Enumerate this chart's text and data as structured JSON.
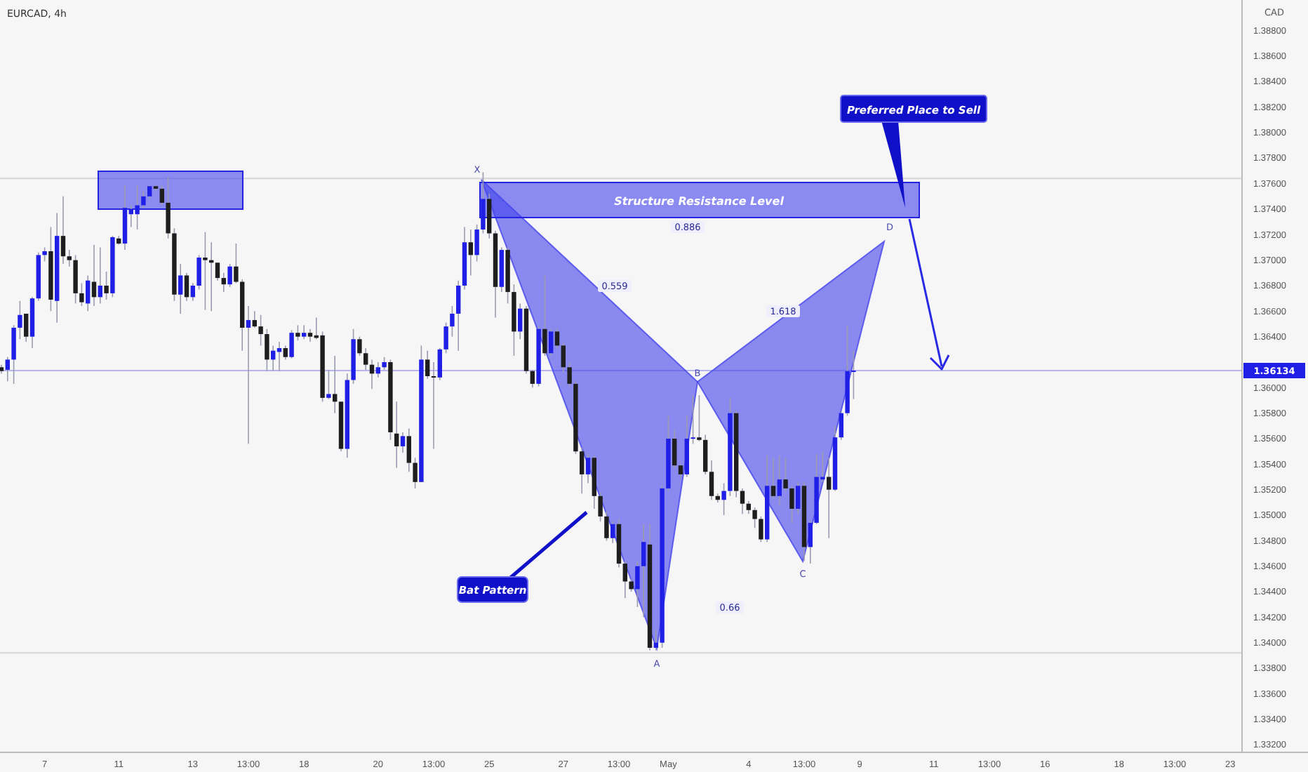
{
  "chart_data": {
    "type": "candlestick",
    "title": "EURCAD, 4h",
    "ylabel": "CAD",
    "categories": [
      null,
      null,
      null,
      null,
      null,
      null,
      null,
      "7",
      null,
      null,
      null,
      null,
      null,
      null,
      null,
      null,
      null,
      null,
      null,
      "11",
      null,
      null,
      null,
      null,
      null,
      null,
      null,
      null,
      null,
      null,
      null,
      "13",
      null,
      null,
      null,
      null,
      null,
      null,
      null,
      null,
      "13:00",
      null,
      null,
      null,
      null,
      null,
      null,
      null,
      null,
      "18",
      null,
      null,
      null,
      null,
      null,
      null,
      null,
      null,
      null,
      null,
      null,
      "20",
      null,
      null,
      null,
      null,
      null,
      null,
      null,
      null,
      "13:00",
      null,
      null,
      null,
      null,
      null,
      null,
      null,
      null,
      "25",
      null,
      null,
      null,
      null,
      null,
      null,
      null,
      null,
      null,
      null,
      null,
      "27",
      null,
      null,
      null,
      null,
      null,
      null,
      null,
      null,
      "13:00",
      null,
      null,
      null,
      null,
      null,
      null,
      null,
      "May",
      null,
      null,
      null,
      null,
      null,
      null,
      null,
      null,
      null,
      null,
      null,
      null,
      "4",
      null,
      null,
      null,
      null,
      null,
      null,
      null,
      null,
      "13:00",
      null,
      null,
      null,
      null,
      null,
      null,
      null,
      null,
      "9",
      null,
      null,
      null,
      null,
      null,
      null,
      null,
      null,
      null,
      null,
      null,
      "11",
      null,
      null,
      null,
      null,
      null,
      null,
      null,
      null,
      "13:00",
      null,
      null,
      null,
      null,
      null,
      null,
      null,
      null,
      "16",
      null,
      null,
      null,
      null,
      null,
      null,
      null,
      null,
      null,
      null,
      null,
      "18",
      null,
      null,
      null,
      null,
      null,
      null,
      null,
      null,
      "13:00",
      null,
      null,
      null,
      null,
      null,
      null,
      null,
      null,
      "23"
    ],
    "ohlc": [
      [
        1.3616,
        1.3618,
        1.3611,
        1.3613
      ],
      [
        1.3614,
        1.3624,
        1.3605,
        1.3622
      ],
      [
        1.3622,
        1.3649,
        1.3603,
        1.3647
      ],
      [
        1.3647,
        1.3668,
        1.3638,
        1.3657
      ],
      [
        1.3658,
        1.3658,
        1.3636,
        1.364
      ],
      [
        1.364,
        1.3671,
        1.3631,
        1.367
      ],
      [
        1.367,
        1.3706,
        1.3668,
        1.3704
      ],
      [
        1.3704,
        1.371,
        1.3699,
        1.3707
      ],
      [
        1.3707,
        1.3726,
        1.366,
        1.3669
      ],
      [
        1.3668,
        1.3737,
        1.3651,
        1.3719
      ],
      [
        1.3719,
        1.375,
        1.3697,
        1.3703
      ],
      [
        1.3703,
        1.3708,
        1.3695,
        1.37
      ],
      [
        1.37,
        1.3704,
        1.3666,
        1.3674
      ],
      [
        1.3674,
        1.3682,
        1.3664,
        1.3667
      ],
      [
        1.3666,
        1.3688,
        1.366,
        1.3684
      ],
      [
        1.3683,
        1.3712,
        1.3664,
        1.3671
      ],
      [
        1.3671,
        1.371,
        1.3666,
        1.368
      ],
      [
        1.368,
        1.3691,
        1.3669,
        1.3674
      ],
      [
        1.3674,
        1.3719,
        1.3671,
        1.3718
      ],
      [
        1.3717,
        1.3719,
        1.3712,
        1.3713
      ],
      [
        1.3713,
        1.3759,
        1.3708,
        1.3741
      ],
      [
        1.3736,
        1.3743,
        1.3726,
        1.374
      ],
      [
        1.3736,
        1.3759,
        1.3724,
        1.3743
      ],
      [
        1.3743,
        1.3754,
        1.3741,
        1.375
      ],
      [
        1.375,
        1.3759,
        1.3748,
        1.3758
      ],
      [
        1.3758,
        1.3759,
        1.3754,
        1.3756
      ],
      [
        1.3756,
        1.3759,
        1.3743,
        1.3745
      ],
      [
        1.3745,
        1.3765,
        1.3717,
        1.3721
      ],
      [
        1.3721,
        1.3725,
        1.3668,
        1.3673
      ],
      [
        1.3673,
        1.3697,
        1.3658,
        1.3688
      ],
      [
        1.3688,
        1.369,
        1.3668,
        1.3671
      ],
      [
        1.3671,
        1.3682,
        1.3668,
        1.368
      ],
      [
        1.368,
        1.3704,
        1.3677,
        1.3702
      ],
      [
        1.3702,
        1.3722,
        1.3661,
        1.37
      ],
      [
        1.37,
        1.3714,
        1.366,
        1.3698
      ],
      [
        1.3698,
        1.3698,
        1.3684,
        1.3686
      ],
      [
        1.3686,
        1.369,
        1.3675,
        1.3681
      ],
      [
        1.3681,
        1.3697,
        1.3679,
        1.3695
      ],
      [
        1.3695,
        1.3713,
        1.3682,
        1.3683
      ],
      [
        1.3683,
        1.3685,
        1.3629,
        1.3647
      ],
      [
        1.3647,
        1.3664,
        1.3556,
        1.3653
      ],
      [
        1.3653,
        1.366,
        1.3647,
        1.3648
      ],
      [
        1.3648,
        1.3657,
        1.3633,
        1.3642
      ],
      [
        1.3642,
        1.3646,
        1.3613,
        1.3622
      ],
      [
        1.3622,
        1.3633,
        1.3613,
        1.3629
      ],
      [
        1.3628,
        1.3636,
        1.3613,
        1.3631
      ],
      [
        1.3631,
        1.3633,
        1.3622,
        1.3624
      ],
      [
        1.3624,
        1.3645,
        1.3623,
        1.3643
      ],
      [
        1.3643,
        1.3649,
        1.3637,
        1.364
      ],
      [
        1.364,
        1.3649,
        1.3638,
        1.3643
      ],
      [
        1.3643,
        1.3646,
        1.3636,
        1.364
      ],
      [
        1.3641,
        1.3655,
        1.3638,
        1.3639
      ],
      [
        1.3641,
        1.3644,
        1.3589,
        1.3592
      ],
      [
        1.3592,
        1.3614,
        1.3591,
        1.3595
      ],
      [
        1.3595,
        1.3625,
        1.358,
        1.3589
      ],
      [
        1.3589,
        1.3589,
        1.355,
        1.3552
      ],
      [
        1.3552,
        1.3611,
        1.3545,
        1.3606
      ],
      [
        1.3606,
        1.3646,
        1.3603,
        1.3638
      ],
      [
        1.3638,
        1.364,
        1.3625,
        1.3627
      ],
      [
        1.3627,
        1.3631,
        1.3614,
        1.3618
      ],
      [
        1.3618,
        1.3622,
        1.3599,
        1.3611
      ],
      [
        1.3611,
        1.362,
        1.3608,
        1.3616
      ],
      [
        1.3616,
        1.3624,
        1.3614,
        1.362
      ],
      [
        1.362,
        1.3622,
        1.3559,
        1.3565
      ],
      [
        1.3564,
        1.3589,
        1.3537,
        1.3554
      ],
      [
        1.3554,
        1.3565,
        1.3549,
        1.3562
      ],
      [
        1.3562,
        1.3568,
        1.3534,
        1.3541
      ],
      [
        1.3541,
        1.3545,
        1.3521,
        1.3526
      ],
      [
        1.3526,
        1.3633,
        1.3526,
        1.3622
      ],
      [
        1.3622,
        1.3629,
        1.3607,
        1.3609
      ],
      [
        1.3609,
        1.362,
        1.3552,
        1.3608
      ],
      [
        1.3608,
        1.3631,
        1.3606,
        1.363
      ],
      [
        1.363,
        1.3651,
        1.3627,
        1.3648
      ],
      [
        1.3648,
        1.3664,
        1.364,
        1.3658
      ],
      [
        1.3658,
        1.3684,
        1.3629,
        1.368
      ],
      [
        1.368,
        1.3726,
        1.3677,
        1.3714
      ],
      [
        1.3714,
        1.3724,
        1.3688,
        1.3704
      ],
      [
        1.3704,
        1.3728,
        1.3699,
        1.3724
      ],
      [
        1.3724,
        1.3769,
        1.3721,
        1.3748
      ],
      [
        1.3748,
        1.3752,
        1.3717,
        1.3721
      ],
      [
        1.3721,
        1.3723,
        1.3655,
        1.3679
      ],
      [
        1.3679,
        1.371,
        1.3675,
        1.3708
      ],
      [
        1.3708,
        1.371,
        1.3666,
        1.3675
      ],
      [
        1.3675,
        1.3681,
        1.3625,
        1.3644
      ],
      [
        1.3644,
        1.3666,
        1.3638,
        1.3662
      ],
      [
        1.3662,
        1.3664,
        1.3611,
        1.3613
      ],
      [
        1.3613,
        1.3614,
        1.36,
        1.3603
      ],
      [
        1.3603,
        1.3648,
        1.3601,
        1.3646
      ],
      [
        1.3646,
        1.3688,
        1.3625,
        1.3627
      ],
      [
        1.3627,
        1.3646,
        1.3625,
        1.3644
      ],
      [
        1.3644,
        1.3646,
        1.3631,
        1.3633
      ],
      [
        1.3633,
        1.3635,
        1.3612,
        1.3616
      ],
      [
        1.3616,
        1.362,
        1.3601,
        1.3603
      ],
      [
        1.3603,
        1.3605,
        1.3548,
        1.355
      ],
      [
        1.355,
        1.3553,
        1.3517,
        1.3532
      ],
      [
        1.3532,
        1.3548,
        1.3525,
        1.3545
      ],
      [
        1.3545,
        1.3547,
        1.3505,
        1.3515
      ],
      [
        1.3515,
        1.3518,
        1.3495,
        1.3499
      ],
      [
        1.3499,
        1.3503,
        1.348,
        1.3482
      ],
      [
        1.3482,
        1.3495,
        1.3478,
        1.3493
      ],
      [
        1.3493,
        1.3497,
        1.3459,
        1.3462
      ],
      [
        1.3462,
        1.3464,
        1.3435,
        1.3448
      ],
      [
        1.3448,
        1.345,
        1.344,
        1.3442
      ],
      [
        1.3442,
        1.3464,
        1.3428,
        1.346
      ],
      [
        1.346,
        1.3493,
        1.342,
        1.3479
      ],
      [
        1.3477,
        1.3493,
        1.3394,
        1.3396
      ],
      [
        1.3396,
        1.341,
        1.3394,
        1.34
      ],
      [
        1.34,
        1.3523,
        1.3396,
        1.3521
      ],
      [
        1.3521,
        1.3578,
        1.3519,
        1.356
      ],
      [
        1.356,
        1.3567,
        1.3537,
        1.3539
      ],
      [
        1.3539,
        1.354,
        1.353,
        1.3532
      ],
      [
        1.3532,
        1.3578,
        1.353,
        1.356
      ],
      [
        1.356,
        1.3594,
        1.3556,
        1.3561
      ],
      [
        1.3561,
        1.3594,
        1.3558,
        1.3559
      ],
      [
        1.3559,
        1.3563,
        1.3532,
        1.3534
      ],
      [
        1.3534,
        1.3543,
        1.3512,
        1.3515
      ],
      [
        1.3515,
        1.3517,
        1.351,
        1.3512
      ],
      [
        1.3512,
        1.3525,
        1.35,
        1.3519
      ],
      [
        1.3519,
        1.3592,
        1.3515,
        1.358
      ],
      [
        1.358,
        1.3582,
        1.3514,
        1.3519
      ],
      [
        1.3519,
        1.3521,
        1.3501,
        1.3509
      ],
      [
        1.3509,
        1.3511,
        1.3501,
        1.3504
      ],
      [
        1.3504,
        1.3506,
        1.349,
        1.3497
      ],
      [
        1.3497,
        1.3499,
        1.3479,
        1.3481
      ],
      [
        1.3481,
        1.3547,
        1.3479,
        1.3523
      ],
      [
        1.3523,
        1.3545,
        1.3513,
        1.3515
      ],
      [
        1.3515,
        1.3547,
        1.3508,
        1.3528
      ],
      [
        1.3528,
        1.3545,
        1.3519,
        1.3521
      ],
      [
        1.3521,
        1.3523,
        1.3494,
        1.3505
      ],
      [
        1.3505,
        1.3526,
        1.3501,
        1.3523
      ],
      [
        1.3523,
        1.3526,
        1.3464,
        1.3475
      ],
      [
        1.3475,
        1.3495,
        1.3462,
        1.3494
      ],
      [
        1.3494,
        1.3548,
        1.3493,
        1.353
      ],
      [
        1.3528,
        1.355,
        1.3526,
        1.353
      ],
      [
        1.353,
        1.3545,
        1.3482,
        1.352
      ],
      [
        1.352,
        1.357,
        1.3519,
        1.3561
      ],
      [
        1.3561,
        1.3581,
        1.3559,
        1.358
      ],
      [
        1.358,
        1.3649,
        1.3578,
        1.3613
      ],
      [
        1.3613,
        1.3629,
        1.3591,
        1.36134
      ],
      null,
      null,
      null,
      null,
      null,
      null,
      null,
      null,
      null,
      null,
      null,
      null,
      null,
      null,
      null,
      null,
      null,
      null,
      null,
      null,
      null,
      null,
      null,
      null,
      null,
      null,
      null,
      null,
      null,
      null,
      null,
      null,
      null,
      null,
      null,
      null,
      null,
      null,
      null,
      null,
      null,
      null,
      null,
      null,
      null,
      null,
      null,
      null,
      null,
      null,
      null,
      null,
      null,
      null,
      null,
      null,
      null,
      null,
      null,
      null,
      null
    ],
    "colors": [
      "#1e1e1e",
      "#1f1fe6",
      "#1f1fe6",
      "#1f1fe6",
      "#1e1e1e",
      "#1f1fe6",
      "#1f1fe6",
      "#1f1fe6",
      "#1e1e1e",
      "#1f1fe6",
      "#1e1e1e",
      "#1e1e1e",
      "#1e1e1e",
      "#1e1e1e",
      "#1f1fe6",
      "#1e1e1e",
      "#1f1fe6",
      "#1e1e1e",
      "#1f1fe6",
      "#1e1e1e",
      "#1f1fe6",
      "#1f1fe6",
      "#1f1fe6",
      "#1f1fe6",
      "#1f1fe6",
      "#1e1e1e",
      "#1e1e1e",
      "#1e1e1e",
      "#1e1e1e",
      "#1f1fe6",
      "#1e1e1e",
      "#1f1fe6",
      "#1f1fe6",
      "#1e1e1e",
      "#1e1e1e",
      "#1e1e1e",
      "#1e1e1e",
      "#1f1fe6",
      "#1e1e1e",
      "#1e1e1e",
      "#1f1fe6",
      "#1e1e1e",
      "#1e1e1e",
      "#1e1e1e",
      "#1f1fe6",
      "#1f1fe6",
      "#1e1e1e",
      "#1f1fe6",
      "#1e1e1e",
      "#1f1fe6",
      "#1e1e1e",
      "#1e1e1e",
      "#1e1e1e",
      "#1f1fe6",
      "#1e1e1e",
      "#1e1e1e",
      "#1f1fe6",
      "#1f1fe6",
      "#1e1e1e",
      "#1e1e1e",
      "#1e1e1e",
      "#1f1fe6",
      "#1f1fe6",
      "#1e1e1e",
      "#1e1e1e",
      "#1f1fe6",
      "#1e1e1e",
      "#1e1e1e",
      "#1f1fe6",
      "#1e1e1e",
      "#1e1e1e",
      "#1f1fe6",
      "#1f1fe6",
      "#1f1fe6",
      "#1f1fe6",
      "#1f1fe6",
      "#1e1e1e",
      "#1f1fe6",
      "#1f1fe6",
      "#1e1e1e",
      "#1e1e1e",
      "#1f1fe6",
      "#1e1e1e",
      "#1e1e1e",
      "#1f1fe6",
      "#1e1e1e",
      "#1e1e1e",
      "#1f1fe6",
      "#1e1e1e",
      "#1f1fe6",
      "#1e1e1e",
      "#1e1e1e",
      "#1e1e1e",
      "#1e1e1e",
      "#1e1e1e",
      "#1f1fe6",
      "#1e1e1e",
      "#1e1e1e",
      "#1e1e1e",
      "#1f1fe6",
      "#1e1e1e",
      "#1e1e1e",
      "#1e1e1e",
      "#1f1fe6",
      "#1f1fe6",
      "#1e1e1e",
      "#1f1fe6",
      "#1f1fe6",
      "#1f1fe6",
      "#1e1e1e",
      "#1e1e1e",
      "#1f1fe6",
      "#1f1fe6",
      "#1e1e1e",
      "#1e1e1e",
      "#1e1e1e",
      "#1e1e1e",
      "#1f1fe6",
      "#1f1fe6",
      "#1e1e1e",
      "#1e1e1e",
      "#1e1e1e",
      "#1e1e1e",
      "#1e1e1e",
      "#1f1fe6",
      "#1e1e1e",
      "#1f1fe6",
      "#1e1e1e",
      "#1e1e1e",
      "#1f1fe6",
      "#1e1e1e",
      "#1f1fe6",
      "#1f1fe6",
      "#1f1fe6",
      "#1e1e1e",
      "#1f1fe6",
      "#1f1fe6",
      "#1f1fe6",
      "#1f1fe6",
      null,
      null,
      null,
      null,
      null,
      null,
      null,
      null,
      null,
      null,
      null,
      null,
      null,
      null,
      null,
      null,
      null,
      null,
      null,
      null,
      null,
      null,
      null,
      null,
      null,
      null,
      null,
      null,
      null,
      null,
      null,
      null,
      null,
      null,
      null,
      null,
      null,
      null,
      null,
      null,
      null,
      null,
      null,
      null,
      null,
      null,
      null,
      null,
      null,
      null,
      null,
      null,
      null,
      null,
      null,
      null,
      null,
      null,
      null,
      null,
      null
    ],
    "ylim": [
      1.3314,
      1.3904
    ],
    "yticks": [
      {
        "value": 1.332,
        "label": "1.33200"
      },
      {
        "value": 1.334,
        "label": "1.33400"
      },
      {
        "value": 1.336,
        "label": "1.33600"
      },
      {
        "value": 1.338,
        "label": "1.33800"
      },
      {
        "value": 1.34,
        "label": "1.34000"
      },
      {
        "value": 1.342,
        "label": "1.34200"
      },
      {
        "value": 1.344,
        "label": "1.34400"
      },
      {
        "value": 1.346,
        "label": "1.34600"
      },
      {
        "value": 1.348,
        "label": "1.34800"
      },
      {
        "value": 1.35,
        "label": "1.35000"
      },
      {
        "value": 1.352,
        "label": "1.35200"
      },
      {
        "value": 1.354,
        "label": "1.35400"
      },
      {
        "value": 1.356,
        "label": "1.35600"
      },
      {
        "value": 1.358,
        "label": "1.35800"
      },
      {
        "value": 1.36,
        "label": "1.36000"
      },
      {
        "value": 1.364,
        "label": "1.36400"
      },
      {
        "value": 1.366,
        "label": "1.36600"
      },
      {
        "value": 1.368,
        "label": "1.36800"
      },
      {
        "value": 1.37,
        "label": "1.37000"
      },
      {
        "value": 1.372,
        "label": "1.37200"
      },
      {
        "value": 1.374,
        "label": "1.37400"
      },
      {
        "value": 1.376,
        "label": "1.37600"
      },
      {
        "value": 1.378,
        "label": "1.37800"
      },
      {
        "value": 1.38,
        "label": "1.38000"
      },
      {
        "value": 1.382,
        "label": "1.38200"
      },
      {
        "value": 1.384,
        "label": "1.38400"
      },
      {
        "value": 1.386,
        "label": "1.38600"
      },
      {
        "value": 1.388,
        "label": "1.38800"
      }
    ],
    "ref_lines": [
      {
        "axis": "y",
        "value": 1.3764,
        "color": "#d6d6d6"
      },
      {
        "axis": "y",
        "value": 1.3392,
        "color": "#d6d6d6"
      },
      {
        "axis": "y",
        "value": 1.36134,
        "label": "1.36134",
        "color": "#1f1fe6"
      }
    ],
    "annotations": [
      "Structure Resistance Level",
      "Preferred Place to Sell",
      "Bat Pattern",
      "X",
      "A",
      "B",
      "C",
      "D",
      "0.886",
      "0.559",
      "0.66",
      "1.618"
    ]
  }
}
